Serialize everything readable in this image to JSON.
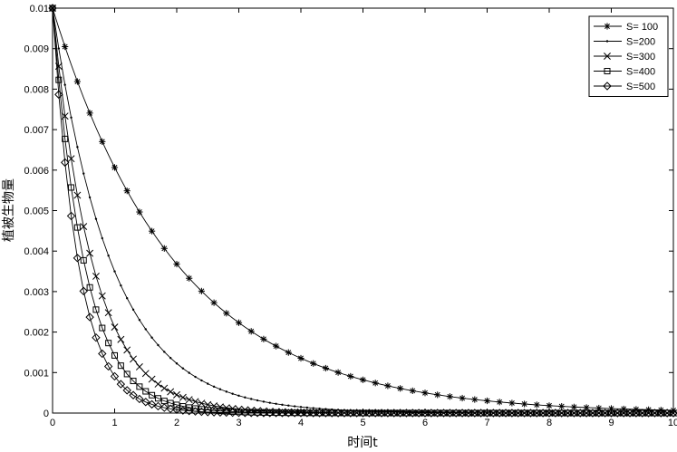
{
  "chart_data": {
    "type": "line",
    "xlabel": "时间t",
    "ylabel": "植被生物量",
    "xlim": [
      0,
      10
    ],
    "ylim": [
      0,
      0.01
    ],
    "xticks": [
      0,
      1,
      2,
      3,
      4,
      5,
      6,
      7,
      8,
      9,
      10
    ],
    "yticks": [
      0,
      0.001,
      0.002,
      0.003,
      0.004,
      0.005,
      0.006,
      0.007,
      0.008,
      0.009,
      0.01
    ],
    "ytick_labels": [
      "0",
      "0.001",
      "0.002",
      "0.003",
      "0.004",
      "0.005",
      "0.006",
      "0.007",
      "0.008",
      "0.009",
      "0.01"
    ],
    "xtick_labels": [
      "0",
      "1",
      "2",
      "3",
      "4",
      "5",
      "6",
      "7",
      "8",
      "9",
      "10"
    ],
    "grid": false,
    "legend_position": "top-right",
    "x_sample_step": 0.1,
    "series": [
      {
        "name": "S= 100",
        "marker": "asterisk",
        "y0": 0.01,
        "decay_rate": 0.5,
        "marker_every": 2
      },
      {
        "name": "S=200",
        "marker": "dot",
        "y0": 0.01,
        "decay_rate": 1.05,
        "marker_every": 1
      },
      {
        "name": "S=300",
        "marker": "x",
        "y0": 0.01,
        "decay_rate": 1.55,
        "marker_every": 1
      },
      {
        "name": "S=400",
        "marker": "square",
        "y0": 0.01,
        "decay_rate": 1.95,
        "marker_every": 1
      },
      {
        "name": "S=500",
        "marker": "diamond",
        "y0": 0.01,
        "decay_rate": 2.4,
        "marker_every": 1
      }
    ]
  }
}
